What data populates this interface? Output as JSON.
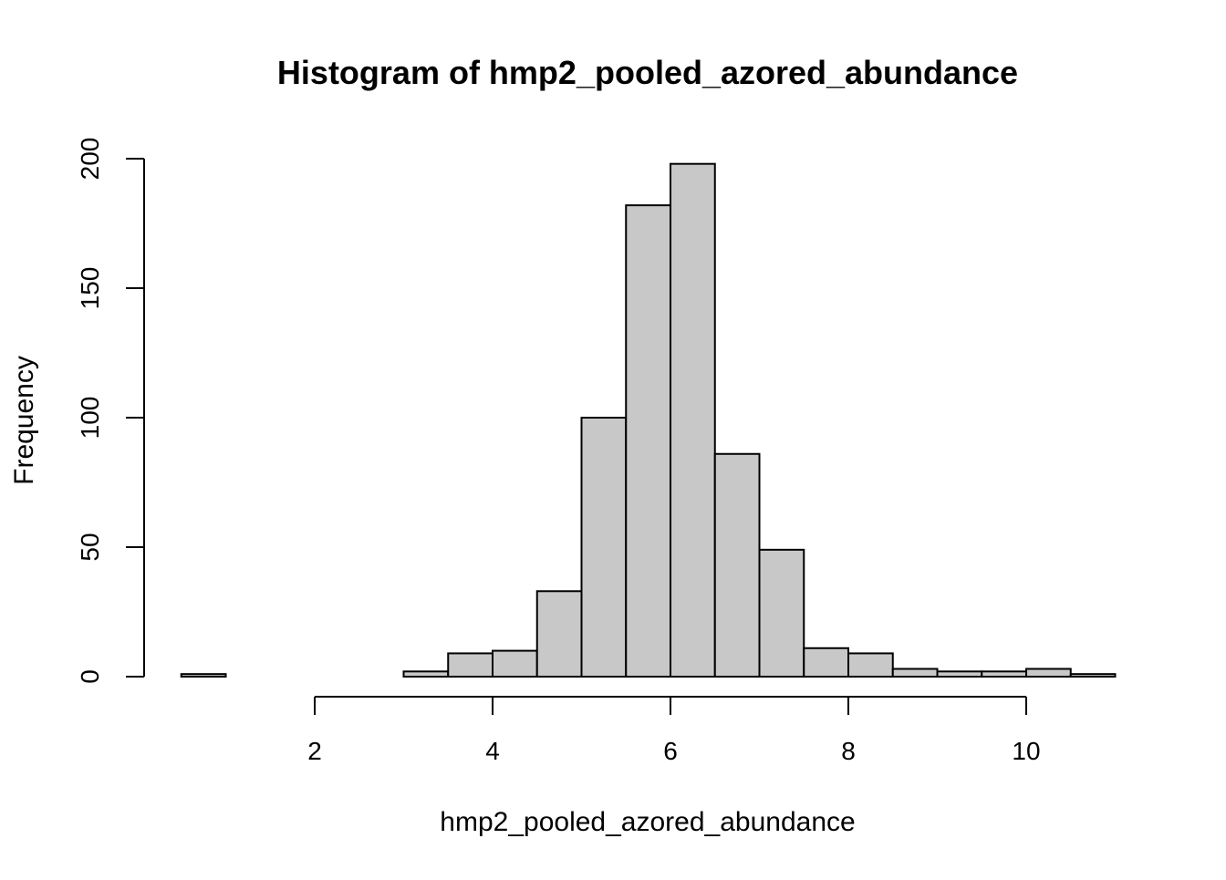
{
  "chart_data": {
    "type": "bar",
    "title": "Histogram of hmp2_pooled_azored_abundance",
    "xlabel": "hmp2_pooled_azored_abundance",
    "ylabel": "Frequency",
    "bar_color": "#c8c8c8",
    "bin_width": 0.5,
    "bins": [
      {
        "start": 0.5,
        "end": 1.0,
        "count": 1
      },
      {
        "start": 1.0,
        "end": 1.5,
        "count": 0
      },
      {
        "start": 1.5,
        "end": 2.0,
        "count": 0
      },
      {
        "start": 2.0,
        "end": 2.5,
        "count": 0
      },
      {
        "start": 2.5,
        "end": 3.0,
        "count": 0
      },
      {
        "start": 3.0,
        "end": 3.5,
        "count": 2
      },
      {
        "start": 3.5,
        "end": 4.0,
        "count": 9
      },
      {
        "start": 4.0,
        "end": 4.5,
        "count": 10
      },
      {
        "start": 4.5,
        "end": 5.0,
        "count": 33
      },
      {
        "start": 5.0,
        "end": 5.5,
        "count": 100
      },
      {
        "start": 5.5,
        "end": 6.0,
        "count": 182
      },
      {
        "start": 6.0,
        "end": 6.5,
        "count": 198
      },
      {
        "start": 6.5,
        "end": 7.0,
        "count": 86
      },
      {
        "start": 7.0,
        "end": 7.5,
        "count": 49
      },
      {
        "start": 7.5,
        "end": 8.0,
        "count": 11
      },
      {
        "start": 8.0,
        "end": 8.5,
        "count": 9
      },
      {
        "start": 8.5,
        "end": 9.0,
        "count": 3
      },
      {
        "start": 9.0,
        "end": 9.5,
        "count": 2
      },
      {
        "start": 9.5,
        "end": 10.0,
        "count": 2
      },
      {
        "start": 10.0,
        "end": 10.5,
        "count": 3
      },
      {
        "start": 10.5,
        "end": 11.0,
        "count": 1
      }
    ],
    "xlim": [
      0.5,
      11.0
    ],
    "ylim": [
      0,
      200
    ],
    "x_ticks": [
      2,
      4,
      6,
      8,
      10
    ],
    "y_ticks": [
      0,
      50,
      100,
      150,
      200
    ],
    "grid": false,
    "legend": "none"
  }
}
